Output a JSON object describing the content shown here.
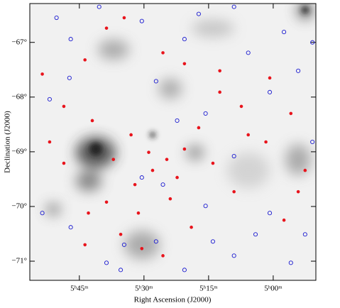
{
  "chart_data": {
    "type": "scatter",
    "xlabel": "Right Ascension (J2000)",
    "ylabel": "Declination (J2000)",
    "xlim": [
      56.5,
      -9.9
    ],
    "ylim": [
      -71.35,
      -66.29
    ],
    "xticks": [
      {
        "value": 45,
        "label": "5ʰ45ᵐ"
      },
      {
        "value": 30,
        "label": "5ʰ30ᵐ"
      },
      {
        "value": 15,
        "label": "5ʰ15ᵐ"
      },
      {
        "value": 0,
        "label": "5ʰ00ᵐ"
      }
    ],
    "yticks": [
      {
        "value": -67,
        "label": "−67°"
      },
      {
        "value": -68,
        "label": "−68°"
      },
      {
        "value": -69,
        "label": "−69°"
      },
      {
        "value": -70,
        "label": "−70°"
      },
      {
        "value": -71,
        "label": "−71°"
      }
    ],
    "series": [
      {
        "color": "#e8141c",
        "marker": "filled",
        "x": [
          38.7,
          34.6,
          25.6,
          43.7,
          20.6,
          12.4,
          0.8,
          53.6,
          48.6,
          42.0,
          33.0,
          28.9,
          24.7,
          20.6,
          14.0,
          5.8,
          -4.1,
          -7.4,
          32.1,
          38.7,
          42.9,
          23.9,
          9.1,
          -2.5,
          35.4,
          30.5,
          25.6,
          19.0,
          43.7,
          12.4,
          7.4,
          48.6,
          51.9,
          17.3,
          1.7,
          -5.8,
          22.3,
          28.0,
          37.1,
          31.3
        ],
        "values": [
          -66.74,
          -66.55,
          -67.19,
          -67.32,
          -67.39,
          -67.52,
          -67.65,
          -67.58,
          -68.17,
          -68.43,
          -68.69,
          -69.01,
          -69.14,
          -68.95,
          -69.21,
          -68.69,
          -68.3,
          -69.34,
          -69.6,
          -69.92,
          -70.12,
          -69.86,
          -69.73,
          -70.25,
          -70.51,
          -70.77,
          -70.9,
          -70.38,
          -70.7,
          -67.91,
          -68.17,
          -69.21,
          -68.82,
          -68.56,
          -68.82,
          -69.73,
          -69.47,
          -69.34,
          -69.14,
          -70.12
        ]
      },
      {
        "color": "#1a1ad0",
        "marker": "open",
        "x": [
          50.3,
          47.0,
          40.4,
          30.5,
          17.3,
          9.1,
          -2.5,
          -9.1,
          51.9,
          27.2,
          15.7,
          0.8,
          22.3,
          53.6,
          47.0,
          38.7,
          35.4,
          27.2,
          20.6,
          14.0,
          9.1,
          4.1,
          -4.1,
          -7.4,
          0.8,
          15.7,
          30.5,
          25.6,
          -9.1,
          9.1,
          34.6,
          47.3,
          5.8,
          -5.8,
          20.6
        ],
        "values": [
          -66.55,
          -66.94,
          -66.35,
          -66.61,
          -66.48,
          -66.35,
          -66.81,
          -67.0,
          -68.04,
          -67.71,
          -68.3,
          -67.91,
          -68.43,
          -70.12,
          -70.38,
          -71.03,
          -71.16,
          -70.64,
          -71.16,
          -70.64,
          -70.9,
          -70.51,
          -71.03,
          -70.51,
          -70.12,
          -69.99,
          -69.47,
          -69.6,
          -68.82,
          -69.08,
          -70.7,
          -67.65,
          -67.19,
          -67.52,
          -66.94
        ]
      }
    ]
  }
}
